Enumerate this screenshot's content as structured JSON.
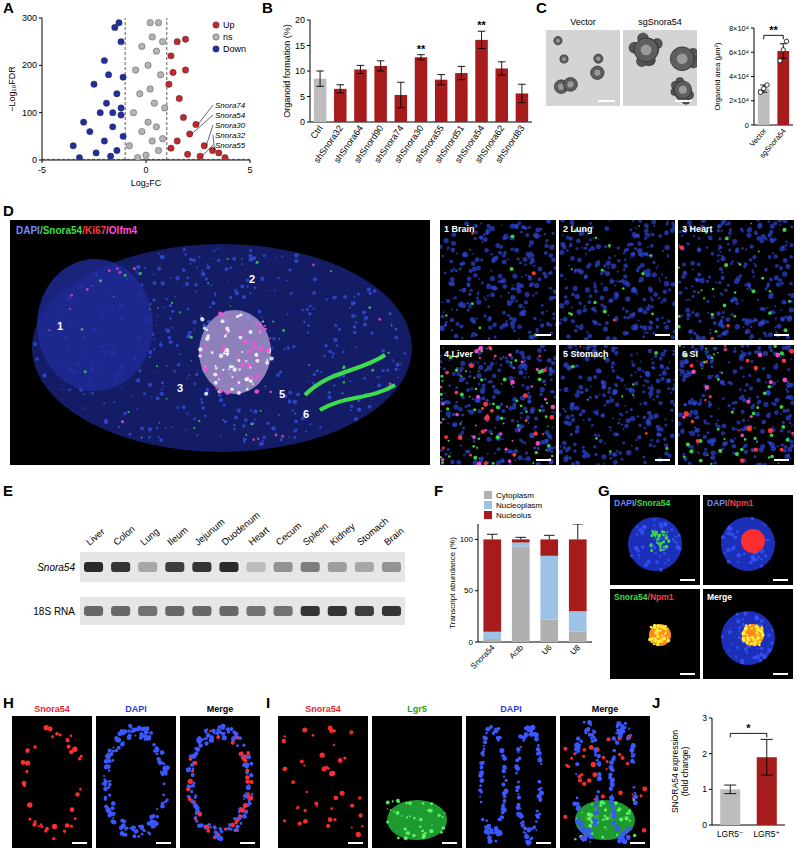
{
  "panel_letters": [
    "A",
    "B",
    "C",
    "D",
    "E",
    "F",
    "G",
    "H",
    "I",
    "J"
  ],
  "chart_data": [
    {
      "type": "scatter",
      "x_label": "Log₂FC",
      "y_label": "−Log₁₀FDR",
      "xlim": [
        -5,
        5
      ],
      "xticks": [
        -5,
        0,
        5
      ],
      "ylim": [
        0,
        300
      ],
      "yticks": [
        0,
        100,
        200,
        300
      ],
      "legend": "upper right",
      "marker": "circle",
      "reference_lines": {
        "x": [
          -1,
          1
        ],
        "y": [
          1.3
        ]
      },
      "series": [
        {
          "name": "Up",
          "color": "#c0282d",
          "x": [
            1.9,
            1.5,
            1.2,
            1.9,
            1.3,
            1.1,
            1.6,
            2.4,
            2.1,
            2.8,
            3.2,
            3.5,
            2.0,
            2.6,
            1.5,
            1.2,
            3.8,
            1.8
          ],
          "values": [
            255,
            250,
            220,
            190,
            185,
            160,
            130,
            75,
            55,
            30,
            20,
            15,
            12,
            8,
            40,
            25,
            5,
            90
          ]
        },
        {
          "name": "ns",
          "color": "#b3b3b3",
          "x": [
            0.2,
            0.6,
            0.3,
            0.8,
            -0.2,
            0.5,
            0.1,
            -0.5,
            0.7,
            0.2,
            -0.3,
            0.4,
            0.9,
            -0.6,
            0.1,
            0.5,
            -0.2,
            0.3,
            -0.8,
            0.6,
            0.0,
            -0.4,
            0.8
          ],
          "values": [
            290,
            290,
            260,
            250,
            240,
            230,
            200,
            190,
            180,
            150,
            140,
            120,
            110,
            100,
            80,
            70,
            60,
            40,
            30,
            20,
            10,
            5,
            45
          ]
        },
        {
          "name": "Down",
          "color": "#1f2f9e",
          "x": [
            -1.3,
            -1.5,
            -1.2,
            -2.0,
            -1.8,
            -1.1,
            -2.5,
            -1.4,
            -1.9,
            -2.2,
            -1.2,
            -3.0,
            -1.6,
            -2.7,
            -1.1,
            -2.0,
            -3.5,
            -1.4,
            -2.4,
            -1.7,
            -3.2,
            -1.2,
            -1.6
          ],
          "values": [
            290,
            280,
            250,
            210,
            180,
            175,
            160,
            140,
            120,
            100,
            95,
            80,
            70,
            60,
            50,
            40,
            30,
            20,
            15,
            8,
            5,
            110,
            100
          ]
        }
      ],
      "annotations": [
        {
          "text": "Snora74",
          "x": 2.4,
          "y": 75
        },
        {
          "text": "Snora54",
          "x": 2.1,
          "y": 55
        },
        {
          "text": "Snora30",
          "x": 2.8,
          "y": 30
        },
        {
          "text": "Snora32",
          "x": 3.2,
          "y": 20
        },
        {
          "text": "Snora55",
          "x": 2.6,
          "y": 8
        }
      ]
    },
    {
      "type": "bar",
      "y_label": "Organoid formation (%)",
      "categories": [
        "Ctrl",
        "shSnora32",
        "shSnora64",
        "shSnord90",
        "shSnora74",
        "shSnora30",
        "shSnora55",
        "shSnord51",
        "shSnora54",
        "shSnora62",
        "shSnord83"
      ],
      "values": [
        8.5,
        6.5,
        10.3,
        11,
        5.3,
        12.7,
        8.3,
        9.6,
        16.1,
        10.5,
        5.6
      ],
      "errors": [
        1.5,
        0.8,
        0.8,
        1.0,
        2.5,
        0.5,
        1.0,
        1.3,
        1.7,
        1.3,
        1.8
      ],
      "colors": [
        "#bdbdbd",
        "#a61c1c",
        "#a61c1c",
        "#a61c1c",
        "#a61c1c",
        "#a61c1c",
        "#a61c1c",
        "#a61c1c",
        "#a61c1c",
        "#a61c1c",
        "#a61c1c"
      ],
      "ylim": [
        0,
        20
      ],
      "yticks": [
        0,
        5,
        10,
        15,
        20
      ],
      "annotations": [
        {
          "text": "**",
          "category": 5
        },
        {
          "text": "**",
          "category": 8
        }
      ]
    },
    {
      "type": "bar",
      "y_label": "Organoid area (μm²)",
      "categories": [
        "Vector",
        "sgSnora54"
      ],
      "values": [
        30000,
        61000
      ],
      "errors": [
        3000,
        6000
      ],
      "points": [
        [
          27000,
          30000,
          33000
        ],
        [
          53000,
          62000,
          69000
        ]
      ],
      "colors": [
        "#bdbdbd",
        "#a61c1c"
      ],
      "ylim": [
        0,
        80000
      ],
      "yticks": [
        0,
        {
          "value": 20000,
          "label": "2×10⁴"
        },
        {
          "value": 40000,
          "label": "4×10⁴"
        },
        {
          "value": 60000,
          "label": "6×10⁴"
        },
        {
          "value": 80000,
          "label": "8×10⁴"
        }
      ],
      "annotations": [
        {
          "text": "**",
          "between": [
            0,
            1
          ]
        }
      ]
    },
    {
      "type": "bar",
      "stacked": true,
      "y_label": "Transcript abundance (%)",
      "categories": [
        "Snora54",
        "Actb",
        "U6",
        "U8"
      ],
      "ylim": [
        0,
        115
      ],
      "yticks": [
        0,
        50,
        100
      ],
      "legend": "top",
      "series": [
        {
          "name": "Cytoplasm",
          "color": "#b0b0b0",
          "values": [
            3,
            93,
            22,
            10
          ]
        },
        {
          "name": "Nucleoplasm",
          "color": "#9cc3e6",
          "values": [
            7,
            4,
            62,
            20
          ]
        },
        {
          "name": "Nucleolus",
          "color": "#a61c1c",
          "values": [
            90,
            3,
            16,
            70
          ],
          "errors": [
            5,
            2,
            4,
            15
          ]
        }
      ]
    },
    {
      "type": "bar",
      "y_label": "SNORA54 expression (fold change)",
      "categories": [
        "LGR5⁻",
        "LGR5⁺"
      ],
      "values": [
        1.0,
        1.9
      ],
      "errors": [
        0.12,
        0.5
      ],
      "colors": [
        "#bdbdbd",
        "#a61c1c"
      ],
      "ylim": [
        0,
        3
      ],
      "yticks": [
        0,
        1,
        2,
        3
      ],
      "annotations": [
        {
          "text": "*",
          "between": [
            0,
            1
          ]
        }
      ]
    }
  ],
  "images": {
    "C": {
      "labels": [
        "Vector",
        "sgSnora54"
      ]
    },
    "D": {
      "channels": [
        {
          "text": "DAPI",
          "color": "#6f8cff"
        },
        {
          "text": "/Snora54",
          "color": "#3cdc4a"
        },
        {
          "text": "/Ki67",
          "color": "#ff3b3b"
        },
        {
          "text": "/Olfm4",
          "color": "#ff4fd8"
        }
      ],
      "region_markers": [
        "1",
        "2",
        "3",
        "4",
        "5",
        "6"
      ],
      "insets": [
        "1 Brain",
        "2 Lung",
        "3 Heart",
        "4 Liver",
        "5 Stomach",
        "6 SI"
      ]
    },
    "E": {
      "lanes": [
        "Liver",
        "Colon",
        "Lung",
        "Ileum",
        "Jejunum",
        "Duodenum",
        "Heart",
        "Cecum",
        "Spleen",
        "Kidney",
        "Stomach",
        "Brain"
      ],
      "rows": [
        {
          "label": "Snora54",
          "intensities": [
            0.9,
            0.85,
            0.3,
            0.8,
            0.85,
            0.9,
            0.2,
            0.4,
            0.5,
            0.35,
            0.3,
            0.4
          ]
        },
        {
          "label": "18S RNA",
          "intensities": [
            0.6,
            0.6,
            0.55,
            0.6,
            0.6,
            0.6,
            0.55,
            0.55,
            0.85,
            0.85,
            0.8,
            0.85
          ]
        }
      ]
    },
    "G": {
      "tiles": [
        [
          {
            "text": "DAPI",
            "color": "#6f8cff"
          },
          {
            "text": "/Snora54",
            "color": "#3cdc4a"
          }
        ],
        [
          {
            "text": "DAPI",
            "color": "#6f8cff"
          },
          {
            "text": "/Npm1",
            "color": "#ff3b3b"
          }
        ],
        [
          {
            "text": "Snora54",
            "color": "#3cdc4a"
          },
          {
            "text": "/Npm1",
            "color": "#ff3b3b"
          }
        ],
        [
          {
            "text": "Merge",
            "color": "#ffffff"
          }
        ]
      ]
    },
    "H": {
      "tiles": [
        [
          {
            "text": "Snora54",
            "color": "#e8262a"
          }
        ],
        [
          {
            "text": "DAPI",
            "color": "#2b3fd6"
          }
        ],
        [
          {
            "text": "Merge",
            "color": "#000000"
          }
        ]
      ]
    },
    "I": {
      "tiles": [
        [
          {
            "text": "Snora54",
            "color": "#e8262a"
          }
        ],
        [
          {
            "text": "Lgr5",
            "color": "#2a9e2a"
          }
        ],
        [
          {
            "text": "DAPI",
            "color": "#2b3fd6"
          }
        ],
        [
          {
            "text": "Merge",
            "color": "#000000"
          }
        ]
      ]
    }
  }
}
